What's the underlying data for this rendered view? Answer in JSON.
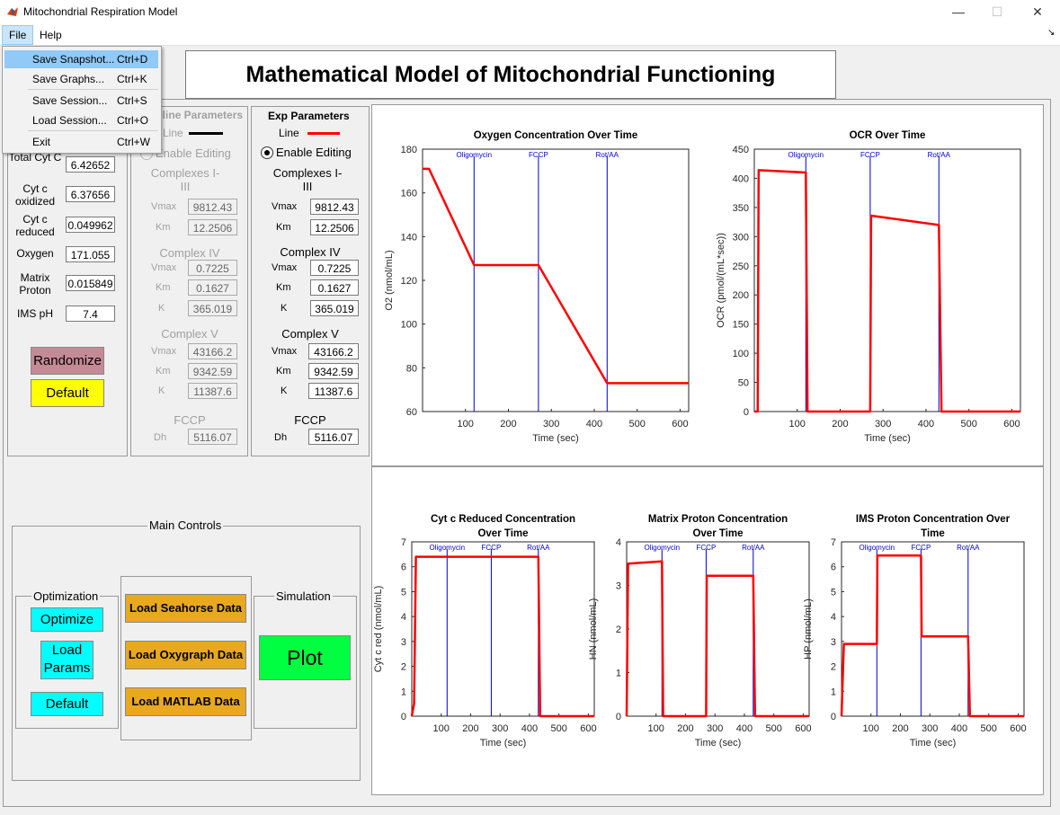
{
  "window": {
    "title": "Mitochondrial Respiration Model"
  },
  "menubar": {
    "file": "File",
    "help": "Help"
  },
  "file_menu": [
    {
      "label": "Save Snapshot...",
      "shortcut": "Ctrl+D"
    },
    {
      "label": "Save Graphs...",
      "shortcut": "Ctrl+K"
    },
    {
      "label": "Save Session...",
      "shortcut": "Ctrl+S"
    },
    {
      "label": "Load Session...",
      "shortcut": "Ctrl+O"
    },
    {
      "label": "Exit",
      "shortcut": "Ctrl+W"
    }
  ],
  "heading": "Mathematical Model of Mitochondrial Functioning",
  "initial": {
    "rows": [
      {
        "label": "Total Cyt C",
        "value": "6.42652"
      },
      {
        "label": "Cyt c oxidized",
        "value": "6.37656"
      },
      {
        "label": "Cyt c reduced",
        "value": "0.049962"
      },
      {
        "label": "Oxygen",
        "value": "171.055"
      },
      {
        "label": "Matrix Proton",
        "value": "0.015849"
      },
      {
        "label": "IMS pH",
        "value": "7.4"
      }
    ],
    "randomize": "Randomize",
    "default": "Default"
  },
  "baseline": {
    "title": "eline Parameters",
    "line": "Line",
    "enable": "Enable Editing",
    "c13_title": "Complexes I-III",
    "c13": [
      {
        "k": "Vmax",
        "v": "9812.43"
      },
      {
        "k": "Km",
        "v": "12.2506"
      }
    ],
    "c4_title": "Complex IV",
    "c4": [
      {
        "k": "Vmax",
        "v": "0.7225"
      },
      {
        "k": "Km",
        "v": "0.1627"
      },
      {
        "k": "K",
        "v": "365.019"
      }
    ],
    "c5_title": "Complex V",
    "c5": [
      {
        "k": "Vmax",
        "v": "43166.2"
      },
      {
        "k": "Km",
        "v": "9342.59"
      },
      {
        "k": "K",
        "v": "11387.6"
      }
    ],
    "fccp_title": "FCCP",
    "fccp": [
      {
        "k": "Dh",
        "v": "5116.07"
      }
    ]
  },
  "exp": {
    "title": "Exp Parameters",
    "line": "Line",
    "enable": "Enable Editing",
    "c13_title": "Complexes I-III",
    "c13": [
      {
        "k": "Vmax",
        "v": "9812.43"
      },
      {
        "k": "Km",
        "v": "12.2506"
      }
    ],
    "c4_title": "Complex IV",
    "c4": [
      {
        "k": "Vmax",
        "v": "0.7225"
      },
      {
        "k": "Km",
        "v": "0.1627"
      },
      {
        "k": "K",
        "v": "365.019"
      }
    ],
    "c5_title": "Complex V",
    "c5": [
      {
        "k": "Vmax",
        "v": "43166.2"
      },
      {
        "k": "Km",
        "v": "9342.59"
      },
      {
        "k": "K",
        "v": "11387.6"
      }
    ],
    "fccp_title": "FCCP",
    "fccp": [
      {
        "k": "Dh",
        "v": "5116.07"
      }
    ]
  },
  "controls": {
    "title": "Main Controls",
    "optimization": "Optimization",
    "optimize": "Optimize",
    "load_params": "Load Params",
    "default": "Default",
    "load_seahorse": "Load Seahorse Data",
    "load_oxygraph": "Load Oxygraph Data",
    "load_matlab": "Load MATLAB Data",
    "simulation": "Simulation",
    "plot": "Plot"
  },
  "colors": {
    "exp_line": "#ff0000",
    "injection_line": "#0000cc",
    "optimize_btn": "#00ffff",
    "default_btn": "#ffff00",
    "randomize_btn": "#c48a96",
    "load_btn": "#e8a820",
    "plot_btn": "#00ff40"
  },
  "chart_data": [
    {
      "type": "line",
      "title": "Oxygen Concentration Over Time",
      "xlabel": "Time (sec)",
      "ylabel": "O2 (nmol/mL)",
      "xlim": [
        0,
        620
      ],
      "ylim": [
        60,
        180
      ],
      "xticks": [
        100,
        200,
        300,
        400,
        500,
        600
      ],
      "yticks": [
        60,
        80,
        100,
        120,
        140,
        160,
        180
      ],
      "markers": [
        {
          "x": 120,
          "label": "Oligomycin"
        },
        {
          "x": 270,
          "label": "FCCP"
        },
        {
          "x": 430,
          "label": "Rot/AA"
        }
      ],
      "series": [
        {
          "x": [
            0,
            15,
            120,
            270,
            430,
            620
          ],
          "y": [
            171,
            171,
            127,
            127,
            73,
            73
          ]
        }
      ]
    },
    {
      "type": "line",
      "title": "OCR Over Time",
      "xlabel": "Time (sec)",
      "ylabel": "OCR (pmol/(mL*sec))",
      "xlim": [
        0,
        620
      ],
      "ylim": [
        0,
        450
      ],
      "xticks": [
        100,
        200,
        300,
        400,
        500,
        600
      ],
      "yticks": [
        0,
        50,
        100,
        150,
        200,
        250,
        300,
        350,
        400,
        450
      ],
      "markers": [
        {
          "x": 120,
          "label": "Oligomycin"
        },
        {
          "x": 270,
          "label": "FCCP"
        },
        {
          "x": 430,
          "label": "Rot/AA"
        }
      ],
      "series": [
        {
          "x": [
            0,
            8,
            10,
            120,
            124,
            270,
            272,
            430,
            436,
            620
          ],
          "y": [
            0,
            0,
            414,
            410,
            0,
            0,
            336,
            320,
            0,
            0
          ]
        }
      ]
    },
    {
      "type": "line",
      "title": "Cyt c Reduced Concentration Over Time",
      "xlabel": "Time (sec)",
      "ylabel": "Cyt c red (nmol/mL)",
      "xlim": [
        0,
        620
      ],
      "ylim": [
        0,
        7
      ],
      "xticks": [
        100,
        200,
        300,
        400,
        500,
        600
      ],
      "yticks": [
        0,
        1,
        2,
        3,
        4,
        5,
        6,
        7
      ],
      "markers": [
        {
          "x": 120,
          "label": "Oligomycin"
        },
        {
          "x": 270,
          "label": "FCCP"
        },
        {
          "x": 430,
          "label": "Rot/AA"
        }
      ],
      "series": [
        {
          "x": [
            0,
            8,
            14,
            430,
            436,
            620
          ],
          "y": [
            0,
            0.5,
            6.4,
            6.4,
            0,
            0
          ]
        }
      ]
    },
    {
      "type": "line",
      "title": "Matrix Proton Concentration Over Time",
      "xlabel": "Time (sec)",
      "ylabel": "HN (nmol/mL)",
      "xlim": [
        0,
        620
      ],
      "ylim": [
        0,
        4
      ],
      "xticks": [
        100,
        200,
        300,
        400,
        500,
        600
      ],
      "yticks": [
        0,
        1,
        2,
        3,
        4
      ],
      "markers": [
        {
          "x": 120,
          "label": "Oligomycin"
        },
        {
          "x": 270,
          "label": "FCCP"
        },
        {
          "x": 430,
          "label": "Rot/AA"
        }
      ],
      "series": [
        {
          "x": [
            0,
            5,
            120,
            124,
            270,
            272,
            430,
            436,
            620
          ],
          "y": [
            0,
            3.5,
            3.55,
            0,
            0,
            3.22,
            3.22,
            0,
            0
          ]
        }
      ]
    },
    {
      "type": "line",
      "title": "IMS Proton Concentration Over Time",
      "xlabel": "Time (sec)",
      "ylabel": "HP (nmol/mL)",
      "xlim": [
        0,
        620
      ],
      "ylim": [
        0,
        7
      ],
      "xticks": [
        100,
        200,
        300,
        400,
        500,
        600
      ],
      "yticks": [
        0,
        1,
        2,
        3,
        4,
        5,
        6,
        7
      ],
      "markers": [
        {
          "x": 120,
          "label": "Oligomycin"
        },
        {
          "x": 270,
          "label": "FCCP"
        },
        {
          "x": 430,
          "label": "Rot/AA"
        }
      ],
      "series": [
        {
          "x": [
            0,
            8,
            120,
            122,
            270,
            272,
            430,
            436,
            620
          ],
          "y": [
            0,
            2.9,
            2.9,
            6.45,
            6.45,
            3.2,
            3.2,
            0,
            0
          ]
        }
      ]
    }
  ]
}
